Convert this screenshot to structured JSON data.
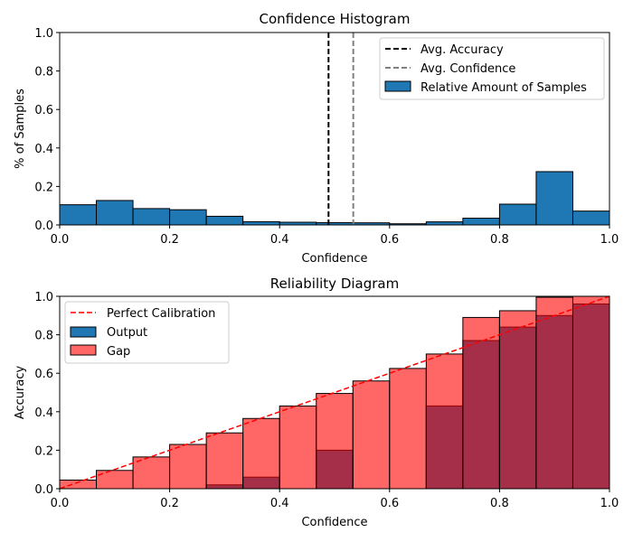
{
  "chart_data": [
    {
      "type": "bar",
      "title": "Confidence Histogram",
      "xlabel": "Confidence",
      "ylabel": "% of Samples",
      "xlim": [
        0,
        1
      ],
      "ylim": [
        0,
        1
      ],
      "xticks": [
        "0.0",
        "0.2",
        "0.4",
        "0.6",
        "0.8",
        "1.0"
      ],
      "yticks": [
        "0.0",
        "0.2",
        "0.4",
        "0.6",
        "0.8",
        "1.0"
      ],
      "bins": 15,
      "series": [
        {
          "name": "Relative Amount of Samples",
          "color": "#1f77b4",
          "values": [
            0.105,
            0.127,
            0.085,
            0.079,
            0.045,
            0.017,
            0.014,
            0.012,
            0.011,
            0.006,
            0.016,
            0.035,
            0.108,
            0.277,
            0.072
          ]
        }
      ],
      "lines": [
        {
          "name": "Avg. Accuracy",
          "x": 0.489,
          "color": "#000000",
          "style": "dashed"
        },
        {
          "name": "Avg. Confidence",
          "x": 0.534,
          "color": "#808080",
          "style": "dashed"
        }
      ],
      "legend": [
        "Avg. Accuracy",
        "Avg. Confidence",
        "Relative Amount of Samples"
      ],
      "legend_position": "top-right"
    },
    {
      "type": "bar",
      "title": "Reliability Diagram",
      "xlabel": "Confidence",
      "ylabel": "Accuracy",
      "xlim": [
        0,
        1
      ],
      "ylim": [
        0,
        1
      ],
      "xticks": [
        "0.0",
        "0.2",
        "0.4",
        "0.6",
        "0.8",
        "1.0"
      ],
      "yticks": [
        "0.0",
        "0.2",
        "0.4",
        "0.6",
        "0.8",
        "1.0"
      ],
      "bins": 15,
      "series": [
        {
          "name": "Output",
          "color": "#1f77b4",
          "values": [
            0.0,
            0.0,
            0.0,
            0.0,
            0.02,
            0.06,
            0.0,
            0.2,
            0.0,
            0.0,
            0.43,
            0.77,
            0.84,
            0.9,
            0.96
          ]
        },
        {
          "name": "Gap",
          "color": "#ff0000",
          "values": [
            0.045,
            0.095,
            0.165,
            0.23,
            0.29,
            0.365,
            0.43,
            0.495,
            0.56,
            0.625,
            0.7,
            0.89,
            0.925,
            0.995,
            1.0
          ]
        }
      ],
      "reference_line": {
        "name": "Perfect Calibration",
        "from": [
          0,
          0
        ],
        "to": [
          1,
          1
        ],
        "color": "#ff0000",
        "style": "dashed"
      },
      "legend": [
        "Perfect Calibration",
        "Output",
        "Gap"
      ],
      "legend_position": "top-left"
    }
  ]
}
